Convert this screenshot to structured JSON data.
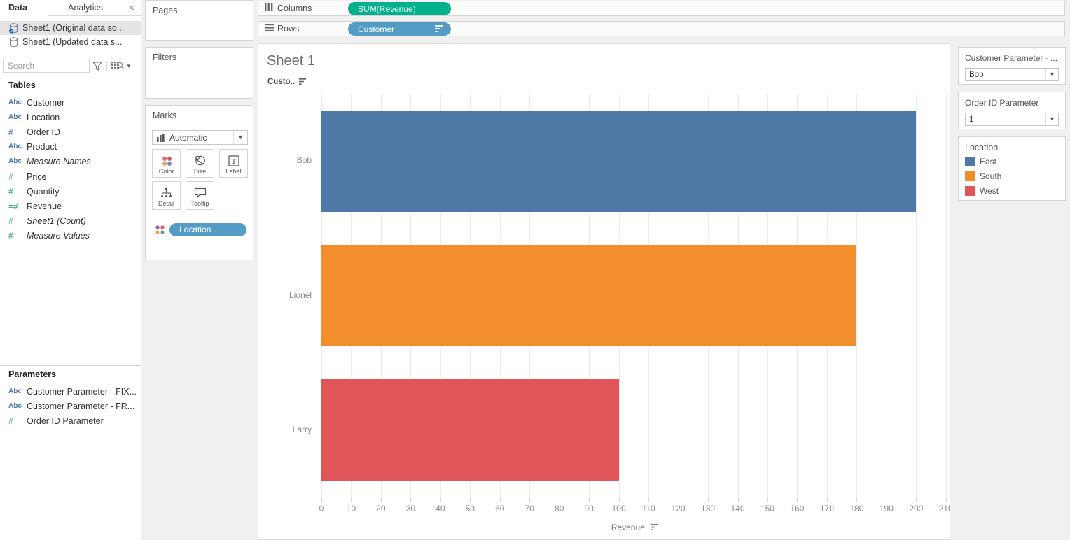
{
  "colors": {
    "pill_green": "#00b18b",
    "pill_blue": "#539cc6",
    "dimension_blue": "#4c79a7",
    "measure_green": "#2f9d77",
    "bar_blue": "#4e79a7",
    "bar_orange": "#f28e2b",
    "bar_red": "#e15759",
    "selected_row_bg": "#e4e4e4"
  },
  "sidebar": {
    "tab_data": "Data",
    "tab_analytics": "Analytics",
    "collapse_label": "<",
    "datasources": [
      {
        "label": "Sheet1 (Original data so...",
        "selected": true
      },
      {
        "label": "Sheet1 (Updated data s...",
        "selected": false
      }
    ],
    "search_placeholder": "Search",
    "tables_header": "Tables",
    "fields": [
      {
        "icon": "Abc",
        "type": "dimension",
        "label": "Customer",
        "italic": false
      },
      {
        "icon": "Abc",
        "type": "dimension",
        "label": "Location",
        "italic": false
      },
      {
        "icon": "#",
        "type": "dimension",
        "label": "Order ID",
        "italic": false
      },
      {
        "icon": "Abc",
        "type": "dimension",
        "label": "Product",
        "italic": false
      },
      {
        "icon": "Abc",
        "type": "dimension",
        "label": "Measure Names",
        "italic": true
      },
      {
        "icon": "#",
        "type": "measure",
        "label": "Price",
        "italic": false,
        "group_start": true
      },
      {
        "icon": "#",
        "type": "measure",
        "label": "Quantity",
        "italic": false
      },
      {
        "icon": "=#",
        "type": "measure",
        "label": "Revenue",
        "italic": false
      },
      {
        "icon": "#",
        "type": "measure",
        "label": "Sheet1 (Count)",
        "italic": true
      },
      {
        "icon": "#",
        "type": "measure",
        "label": "Measure Values",
        "italic": true
      }
    ],
    "parameters_header": "Parameters",
    "parameters": [
      {
        "icon": "Abc",
        "type": "dimension",
        "label": "Customer Parameter - FIX..."
      },
      {
        "icon": "Abc",
        "type": "dimension",
        "label": "Customer Parameter - FR..."
      },
      {
        "icon": "#",
        "type": "measure",
        "label": "Order ID Parameter"
      }
    ]
  },
  "cards": {
    "pages_title": "Pages",
    "filters_title": "Filters",
    "marks": {
      "title": "Marks",
      "mark_type": "Automatic",
      "buttons": [
        {
          "label": "Color"
        },
        {
          "label": "Size"
        },
        {
          "label": "Label"
        },
        {
          "label": "Detail"
        },
        {
          "label": "Tooltip"
        }
      ],
      "pill": "Location"
    }
  },
  "shelves": {
    "columns_label": "Columns",
    "columns_pill": "SUM(Revenue)",
    "rows_label": "Rows",
    "rows_pill": "Customer"
  },
  "chart_data": {
    "type": "bar",
    "orientation": "horizontal",
    "title": "Sheet 1",
    "row_field_header": "Custo..",
    "categories": [
      "Bob",
      "Lionel",
      "Larry"
    ],
    "values": [
      200,
      180,
      100
    ],
    "bar_colors": [
      "#4e79a7",
      "#f28e2b",
      "#e15759"
    ],
    "series_field": "Location",
    "series_of_bars": [
      "East",
      "South",
      "West"
    ],
    "xlabel": "Revenue",
    "xlim": [
      0,
      211
    ],
    "xticks": [
      0,
      10,
      20,
      30,
      40,
      50,
      60,
      70,
      80,
      90,
      100,
      110,
      120,
      130,
      140,
      150,
      160,
      170,
      180,
      190,
      200,
      210
    ],
    "grid": true,
    "sorted_descending": true
  },
  "right_panel": {
    "param_cards": [
      {
        "title": "Customer Parameter - ...",
        "value": "Bob"
      },
      {
        "title": "Order ID Parameter",
        "value": "1"
      }
    ],
    "legend": {
      "title": "Location",
      "items": [
        {
          "label": "East",
          "color": "#4e79a7"
        },
        {
          "label": "South",
          "color": "#f28e2b"
        },
        {
          "label": "West",
          "color": "#e15759"
        }
      ]
    }
  }
}
